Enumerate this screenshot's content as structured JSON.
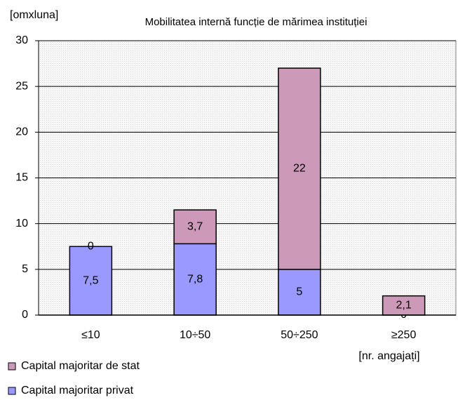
{
  "chart_data": {
    "type": "stacked_bar",
    "title": "Mobilitatea internă funcție de mărimea instituției",
    "y_label": "[omxluna]",
    "x_label": "[nr. angajați]",
    "categories": [
      "≤10",
      "10÷50",
      "50÷250",
      "≥250"
    ],
    "series": [
      {
        "name": "Capital majoritar privat",
        "color": "#9999ff",
        "values": [
          7.5,
          7.8,
          5,
          0
        ],
        "value_labels": [
          "7,5",
          "7,8",
          "5",
          "0"
        ]
      },
      {
        "name": "Capital majoritar de stat",
        "color": "#cc99b8",
        "values": [
          0,
          3.7,
          22,
          2.1
        ],
        "value_labels": [
          "0",
          "3,7",
          "22",
          "2,1"
        ]
      }
    ],
    "ylim": [
      0,
      30
    ],
    "yticks": [
      0,
      5,
      10,
      15,
      20,
      25,
      30
    ],
    "grid": true
  }
}
